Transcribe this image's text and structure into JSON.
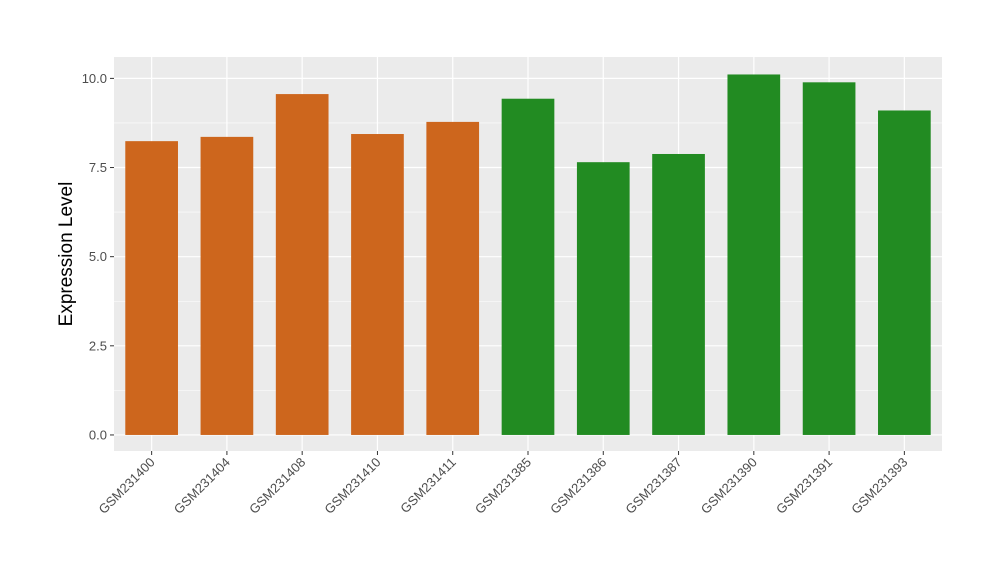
{
  "chart_data": {
    "type": "bar",
    "title": "",
    "xlabel": "",
    "ylabel": "Expression Level",
    "ylim": [
      -0.45,
      10.6
    ],
    "yticks": [
      0,
      2.5,
      5,
      7.5,
      10
    ],
    "ytick_labels": [
      "0.0",
      "2.5",
      "5.0",
      "7.5",
      "10.0"
    ],
    "grid": true,
    "categories": [
      "GSM231400",
      "GSM231404",
      "GSM231408",
      "GSM231410",
      "GSM231411",
      "GSM231385",
      "GSM231386",
      "GSM231387",
      "GSM231390",
      "GSM231391",
      "GSM231393"
    ],
    "values": [
      8.24,
      8.36,
      9.56,
      8.44,
      8.78,
      9.43,
      7.65,
      7.88,
      10.11,
      9.89,
      9.1
    ],
    "groups": [
      "a",
      "a",
      "a",
      "a",
      "a",
      "b",
      "b",
      "b",
      "b",
      "b",
      "b"
    ],
    "colors": {
      "a": "#CD661D",
      "b": "#228B22"
    }
  }
}
